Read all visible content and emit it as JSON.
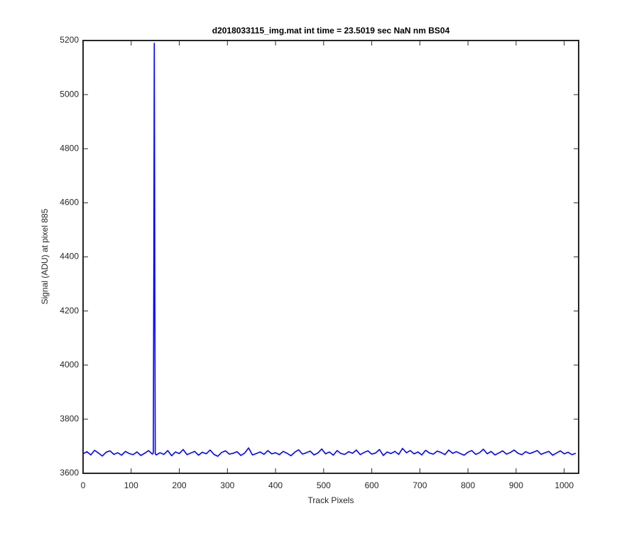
{
  "chart_data": {
    "type": "line",
    "title": "d2018033115_img.mat int time = 23.5019 sec  NaN nm BS04",
    "x_label": "Track Pixels",
    "y_label": "Signal (ADU) at pixel 885",
    "xlim": [
      0,
      1030
    ],
    "ylim": [
      3600,
      5200
    ],
    "xticks": [
      0,
      100,
      200,
      300,
      400,
      500,
      600,
      700,
      800,
      900,
      1000
    ],
    "yticks": [
      3600,
      3800,
      4000,
      4200,
      4400,
      4600,
      4800,
      5000,
      5200
    ],
    "grid": false,
    "x": [
      0,
      8,
      16,
      24,
      32,
      40,
      48,
      56,
      64,
      72,
      80,
      88,
      96,
      104,
      112,
      120,
      128,
      136,
      144,
      146,
      147,
      148,
      149,
      150,
      152,
      160,
      168,
      176,
      184,
      192,
      200,
      208,
      216,
      224,
      232,
      240,
      248,
      256,
      264,
      272,
      280,
      288,
      296,
      304,
      312,
      320,
      328,
      336,
      344,
      352,
      360,
      368,
      376,
      384,
      392,
      400,
      408,
      416,
      424,
      432,
      440,
      448,
      456,
      464,
      472,
      480,
      488,
      496,
      504,
      512,
      520,
      528,
      536,
      544,
      552,
      560,
      568,
      576,
      584,
      592,
      600,
      608,
      616,
      624,
      632,
      640,
      648,
      656,
      664,
      672,
      680,
      688,
      696,
      704,
      712,
      720,
      728,
      736,
      744,
      752,
      760,
      768,
      776,
      784,
      792,
      800,
      808,
      816,
      824,
      832,
      840,
      848,
      856,
      864,
      872,
      880,
      888,
      896,
      904,
      912,
      920,
      928,
      936,
      944,
      952,
      960,
      968,
      976,
      984,
      992,
      1000,
      1008,
      1016,
      1024
    ],
    "series": [
      {
        "color": "#0000ff",
        "values": [
          3672,
          3680,
          3668,
          3685,
          3675,
          3664,
          3678,
          3683,
          3670,
          3676,
          3667,
          3681,
          3673,
          3669,
          3679,
          3666,
          3674,
          3684,
          3671,
          3675,
          4340,
          5190,
          4365,
          3672,
          3668,
          3676,
          3670,
          3684,
          3665,
          3679,
          3673,
          3688,
          3669,
          3675,
          3681,
          3667,
          3678,
          3672,
          3686,
          3670,
          3663,
          3677,
          3683,
          3671,
          3674,
          3680,
          3666,
          3675,
          3694,
          3668,
          3673,
          3679,
          3670,
          3684,
          3672,
          3676,
          3669,
          3681,
          3674,
          3665,
          3678,
          3687,
          3671,
          3676,
          3682,
          3668,
          3675,
          3690,
          3672,
          3679,
          3667,
          3684,
          3673,
          3670,
          3680,
          3674,
          3686,
          3669,
          3677,
          3683,
          3671,
          3675,
          3688,
          3666,
          3679,
          3673,
          3681,
          3670,
          3692,
          3676,
          3684,
          3672,
          3679,
          3668,
          3685,
          3675,
          3671,
          3682,
          3677,
          3669,
          3686,
          3674,
          3680,
          3673,
          3667,
          3678,
          3684,
          3670,
          3676,
          3689,
          3672,
          3681,
          3668,
          3675,
          3683,
          3671,
          3677,
          3686,
          3674,
          3669,
          3680,
          3673,
          3678,
          3684,
          3670,
          3676,
          3681,
          3667,
          3675,
          3683,
          3672,
          3678,
          3669,
          3674
        ]
      }
    ]
  }
}
